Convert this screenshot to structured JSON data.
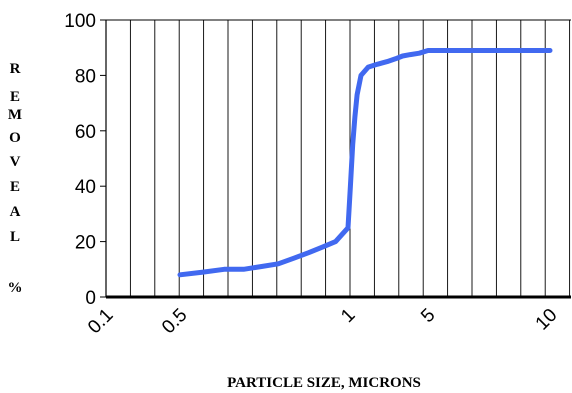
{
  "chart_data": {
    "type": "line",
    "title": "",
    "xlabel": "PARTICLE SIZE, MICRONS",
    "ylabel_letters": [
      "R",
      "E",
      "M",
      "O",
      "V",
      "E",
      "A",
      "L",
      "",
      "%"
    ],
    "ylim": [
      0,
      100
    ],
    "yticks": [
      0,
      20,
      40,
      60,
      80,
      100
    ],
    "ytick_labels": [
      "0",
      "20",
      "40",
      "60",
      "80",
      "100"
    ],
    "xtick_labels": [
      "0.1",
      "0.5",
      "1",
      "5",
      "10"
    ],
    "grid": {
      "vertical": true,
      "horizontal": false
    },
    "series": [
      {
        "color": "#4169f0",
        "x": [
          0.5,
          0.55,
          0.6,
          0.65,
          0.7,
          0.75,
          0.8,
          0.85,
          0.9,
          0.95,
          1.0,
          1.05,
          1.1,
          1.15,
          1.2,
          1.3,
          1.5,
          1.8,
          2.2,
          2.6,
          3.0,
          3.5,
          4.2,
          5.0,
          6.0,
          7.0,
          8.0,
          9.0,
          10.0
        ],
        "y": [
          8,
          9,
          10,
          10,
          11,
          12,
          14,
          16,
          18,
          20,
          25,
          40,
          55,
          65,
          73,
          80,
          83,
          84,
          85,
          86,
          87,
          87.5,
          88,
          89,
          89,
          89,
          89,
          89,
          89
        ]
      }
    ]
  }
}
